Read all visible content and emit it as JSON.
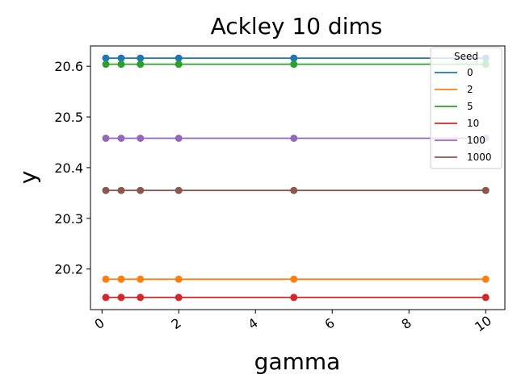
{
  "chart_data": {
    "type": "line",
    "title": "Ackley 10 dims",
    "xlabel": "gamma",
    "ylabel": "y",
    "x": [
      0.1,
      0.5,
      1,
      2,
      5,
      10
    ],
    "xlim": [
      -0.3,
      10.5
    ],
    "ylim": [
      20.12,
      20.64
    ],
    "xticks": [
      0,
      2,
      4,
      6,
      8,
      10
    ],
    "yticks": [
      20.2,
      20.3,
      20.4,
      20.5,
      20.6
    ],
    "xtick_labels": [
      "0",
      "2",
      "4",
      "6",
      "8",
      "10"
    ],
    "ytick_labels": [
      "20.2",
      "20.3",
      "20.4",
      "20.5",
      "20.6"
    ],
    "grid": false,
    "legend": {
      "title": "Seed",
      "placement": "top-right"
    },
    "series": [
      {
        "name": "0",
        "color": "#1f77b4",
        "values": [
          20.616,
          20.616,
          20.616,
          20.616,
          20.616,
          20.616
        ]
      },
      {
        "name": "2",
        "color": "#ff7f0e",
        "values": [
          20.18,
          20.18,
          20.18,
          20.18,
          20.18,
          20.18
        ]
      },
      {
        "name": "5",
        "color": "#2ca02c",
        "values": [
          20.604,
          20.604,
          20.604,
          20.604,
          20.604,
          20.604
        ]
      },
      {
        "name": "10",
        "color": "#d62728",
        "values": [
          20.144,
          20.144,
          20.144,
          20.144,
          20.144,
          20.144
        ]
      },
      {
        "name": "100",
        "color": "#9467bd",
        "values": [
          20.458,
          20.458,
          20.458,
          20.458,
          20.458,
          20.458
        ]
      },
      {
        "name": "1000",
        "color": "#8c564b",
        "values": [
          20.355,
          20.355,
          20.355,
          20.355,
          20.355,
          20.355
        ]
      }
    ]
  }
}
